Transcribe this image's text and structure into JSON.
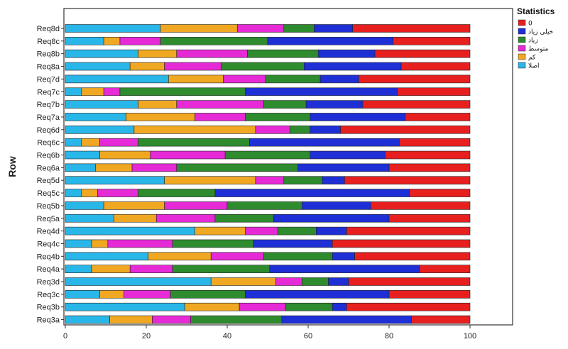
{
  "chart_data": {
    "type": "bar",
    "orientation": "horizontal",
    "stacked": true,
    "xlabel": "",
    "ylabel": "Row",
    "xlim": [
      0,
      100
    ],
    "x_ticks": [
      0,
      20,
      40,
      60,
      80,
      100
    ],
    "grid": false,
    "legend_title": "Statistics",
    "legend_position": "top-right",
    "categories": [
      "Req8d",
      "Req8c",
      "Req8b",
      "Req8a",
      "Req7d",
      "Req7c",
      "Req7b",
      "Req7a",
      "Req6d",
      "Req6c",
      "Req6b",
      "Req6a",
      "Req5d",
      "Req5c",
      "Req5b",
      "Req5a",
      "Req4d",
      "Req4c",
      "Req4b",
      "Req4a",
      "Req3d",
      "Req3c",
      "Req3b",
      "Req3a"
    ],
    "series": [
      {
        "name": "اصلا",
        "color": "#29b6e8",
        "values": [
          23.5,
          9.5,
          18,
          16,
          25.5,
          4,
          18,
          15,
          17,
          4,
          8.5,
          7.5,
          24.5,
          4,
          9.5,
          12,
          32,
          6.5,
          20.5,
          6.5,
          36,
          8.5,
          29.5,
          11
        ]
      },
      {
        "name": "کم",
        "color": "#f0a823",
        "values": [
          19,
          4,
          9.5,
          8.5,
          13.5,
          5.5,
          9.5,
          17,
          30,
          4.5,
          12.5,
          9,
          22.5,
          4,
          15,
          10.5,
          12.5,
          4,
          15.5,
          9.5,
          16,
          6,
          13.5,
          10.5
        ]
      },
      {
        "name": "متوسط",
        "color": "#e62ad6",
        "values": [
          11.5,
          10,
          17.5,
          14,
          10.5,
          4,
          21.5,
          12.5,
          8.5,
          9.5,
          18.5,
          11,
          7,
          10,
          15.5,
          14.5,
          8,
          16,
          13,
          10.5,
          6.5,
          11.5,
          11.5,
          9.5
        ]
      },
      {
        "name": "زیاد",
        "color": "#2e8b2e",
        "values": [
          7.5,
          26.5,
          17.5,
          20.5,
          13.5,
          31,
          10.5,
          16,
          5,
          27.5,
          21,
          30,
          9.5,
          19,
          18.5,
          14.5,
          9.5,
          20,
          17,
          24,
          6.5,
          18.5,
          11.5,
          22.5
        ]
      },
      {
        "name": "خیلی زیاد",
        "color": "#1f2fd6",
        "values": [
          9.5,
          31,
          14,
          24,
          9.5,
          37.5,
          14,
          23.5,
          7.5,
          37,
          18.5,
          22.5,
          5.5,
          48,
          17,
          28.5,
          7.5,
          19.5,
          5.5,
          37,
          5,
          35.5,
          3.5,
          32
        ]
      },
      {
        "name": "0",
        "color": "#e81f1f",
        "values": [
          29,
          19,
          23.5,
          17,
          27.5,
          18,
          26.5,
          16,
          32,
          17.5,
          21,
          20,
          31,
          15,
          24.5,
          20,
          30.5,
          34,
          28.5,
          12.5,
          30,
          20,
          30.5,
          14.5
        ]
      }
    ]
  }
}
